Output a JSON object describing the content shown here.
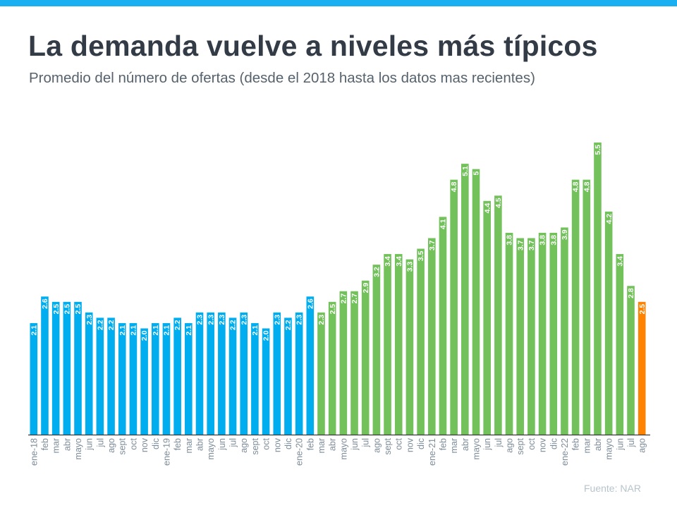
{
  "header": {
    "title": "La demanda vuelve a niveles más típicos",
    "subtitle": "Promedio del número de ofertas (desde el 2018 hasta los datos mas recientes)"
  },
  "source": "Fuente:  NAR",
  "colors": {
    "top_bar": "#1aaff0",
    "blue": "#00aeef",
    "green": "#72c15a",
    "orange": "#ff8200"
  },
  "chart_data": {
    "type": "bar",
    "title": "",
    "xlabel": "",
    "ylabel": "",
    "ylim": [
      0,
      5.5
    ],
    "grid": false,
    "categories": [
      "ene-18",
      "feb",
      "mar",
      "abr",
      "mayo",
      "jun",
      "jul",
      "ago",
      "sept",
      "oct",
      "nov",
      "dic",
      "ene-19",
      "feb",
      "mar",
      "abr",
      "mayo",
      "jun",
      "jul",
      "ago",
      "sept",
      "oct",
      "nov",
      "dic",
      "ene-20",
      "feb",
      "mar",
      "abr",
      "mayo",
      "jun",
      "jul",
      "ago",
      "sept",
      "oct",
      "nov",
      "dic",
      "ene-21",
      "feb",
      "mar",
      "abr",
      "mayo",
      "jun",
      "jul",
      "ago",
      "sept",
      "oct",
      "nov",
      "dic",
      "ene-22",
      "feb",
      "mar",
      "abr",
      "mayo",
      "jun",
      "jul",
      "ago"
    ],
    "values": [
      2.1,
      2.6,
      2.5,
      2.5,
      2.5,
      2.3,
      2.2,
      2.2,
      2.1,
      2.1,
      2.0,
      2.1,
      2.1,
      2.2,
      2.1,
      2.3,
      2.3,
      2.3,
      2.2,
      2.3,
      2.1,
      2.0,
      2.3,
      2.2,
      2.3,
      2.6,
      2.3,
      2.5,
      2.7,
      2.7,
      2.9,
      3.2,
      3.4,
      3.4,
      3.3,
      3.5,
      3.7,
      4.1,
      4.8,
      5.1,
      5,
      4.4,
      4.5,
      3.8,
      3.7,
      3.7,
      3.8,
      3.8,
      3.9,
      4.8,
      4.8,
      5.5,
      4.2,
      3.4,
      2.8,
      2.5
    ],
    "data_labels": [
      "2.1",
      "2.6",
      "2.5",
      "2.5",
      "2.5",
      "2.3",
      "2.2",
      "2.2",
      "2.1",
      "2.1",
      "2.0",
      "2.1",
      "2.1",
      "2.2",
      "2.1",
      "2.3",
      "2.3",
      "2.3",
      "2.2",
      "2.3",
      "2.1",
      "2.0",
      "2.3",
      "2.2",
      "2.3",
      "2.6",
      "2.3",
      "2.5",
      "2.7",
      "2.7",
      "2.9",
      "3.2",
      "3.4",
      "3.4",
      "3.3",
      "3.5",
      "3.7",
      "4.1",
      "4.8",
      "5.1",
      "5",
      "4.4",
      "4.5",
      "3.8",
      "3.7",
      "3.7",
      "3.8",
      "3.8",
      "3.9",
      "4.8",
      "4.8",
      "5.5",
      "4.2",
      "3.4",
      "2.8",
      "2.5"
    ],
    "bar_colors_by_period": [
      {
        "from": 0,
        "to": 25,
        "color": "blue"
      },
      {
        "from": 26,
        "to": 54,
        "color": "green"
      },
      {
        "from": 55,
        "to": 55,
        "color": "orange"
      }
    ]
  }
}
